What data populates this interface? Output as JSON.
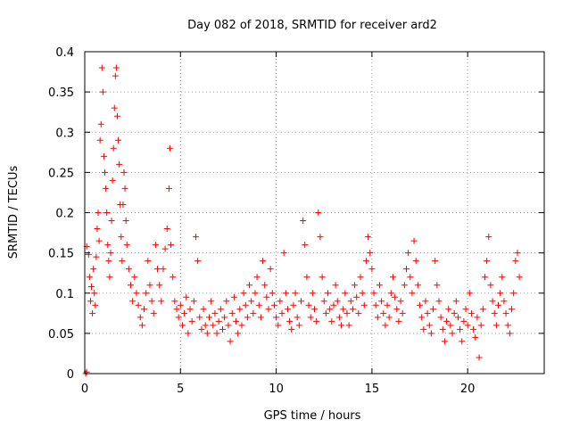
{
  "chart_data": {
    "type": "scatter",
    "title": "Day 082 of 2018, SRMTID for receiver ard2",
    "xlabel": "GPS time / hours",
    "ylabel": "SRMTID / TECUs",
    "xlim": [
      0,
      24
    ],
    "ylim": [
      0,
      0.4
    ],
    "xticks": [
      0,
      5,
      10,
      15,
      20
    ],
    "xtick_labels": [
      "0",
      "5",
      "10",
      "15",
      "20"
    ],
    "yticks": [
      0,
      0.05,
      0.1,
      0.15,
      0.2,
      0.25,
      0.3,
      0.35,
      0.4
    ],
    "ytick_labels": [
      "0",
      "0.05",
      "0.1",
      "0.15",
      "0.2",
      "0.25",
      "0.3",
      "0.35",
      "0.4"
    ],
    "grid": true,
    "marker": "plus",
    "marker_color": "#ff0000",
    "series": [
      {
        "name": "SRMTID",
        "points": [
          [
            0.05,
            0.0
          ],
          [
            0.1,
            0.002
          ],
          [
            0.1,
            0.158
          ],
          [
            0.2,
            0.148
          ],
          [
            0.25,
            0.12
          ],
          [
            0.3,
            0.09
          ],
          [
            0.35,
            0.108
          ],
          [
            0.4,
            0.075
          ],
          [
            0.45,
            0.13
          ],
          [
            0.5,
            0.1
          ],
          [
            0.55,
            0.085
          ],
          [
            0.6,
            0.145
          ],
          [
            0.65,
            0.18
          ],
          [
            0.7,
            0.2
          ],
          [
            0.75,
            0.165
          ],
          [
            0.8,
            0.29
          ],
          [
            0.85,
            0.31
          ],
          [
            0.9,
            0.38
          ],
          [
            0.95,
            0.35
          ],
          [
            1.0,
            0.27
          ],
          [
            1.05,
            0.25
          ],
          [
            1.1,
            0.23
          ],
          [
            1.15,
            0.2
          ],
          [
            1.2,
            0.16
          ],
          [
            1.25,
            0.14
          ],
          [
            1.3,
            0.12
          ],
          [
            1.35,
            0.15
          ],
          [
            1.4,
            0.19
          ],
          [
            1.45,
            0.24
          ],
          [
            1.5,
            0.28
          ],
          [
            1.55,
            0.33
          ],
          [
            1.6,
            0.37
          ],
          [
            1.65,
            0.38
          ],
          [
            1.7,
            0.32
          ],
          [
            1.75,
            0.29
          ],
          [
            1.8,
            0.26
          ],
          [
            1.85,
            0.21
          ],
          [
            1.9,
            0.17
          ],
          [
            1.95,
            0.14
          ],
          [
            2.0,
            0.21
          ],
          [
            2.05,
            0.25
          ],
          [
            2.1,
            0.23
          ],
          [
            2.15,
            0.19
          ],
          [
            2.2,
            0.16
          ],
          [
            2.3,
            0.13
          ],
          [
            2.4,
            0.11
          ],
          [
            2.5,
            0.09
          ],
          [
            2.6,
            0.12
          ],
          [
            2.7,
            0.1
          ],
          [
            2.8,
            0.085
          ],
          [
            2.9,
            0.07
          ],
          [
            3.0,
            0.06
          ],
          [
            3.1,
            0.08
          ],
          [
            3.2,
            0.1
          ],
          [
            3.3,
            0.14
          ],
          [
            3.4,
            0.11
          ],
          [
            3.5,
            0.09
          ],
          [
            3.6,
            0.075
          ],
          [
            3.7,
            0.16
          ],
          [
            3.8,
            0.13
          ],
          [
            3.9,
            0.11
          ],
          [
            4.0,
            0.09
          ],
          [
            4.1,
            0.13
          ],
          [
            4.2,
            0.155
          ],
          [
            4.3,
            0.18
          ],
          [
            4.4,
            0.23
          ],
          [
            4.45,
            0.28
          ],
          [
            4.5,
            0.16
          ],
          [
            4.6,
            0.12
          ],
          [
            4.7,
            0.09
          ],
          [
            4.8,
            0.08
          ],
          [
            4.9,
            0.07
          ],
          [
            5.0,
            0.085
          ],
          [
            5.1,
            0.06
          ],
          [
            5.2,
            0.075
          ],
          [
            5.3,
            0.095
          ],
          [
            5.4,
            0.05
          ],
          [
            5.5,
            0.08
          ],
          [
            5.6,
            0.065
          ],
          [
            5.7,
            0.09
          ],
          [
            5.8,
            0.17
          ],
          [
            5.9,
            0.14
          ],
          [
            6.0,
            0.07
          ],
          [
            6.1,
            0.055
          ],
          [
            6.2,
            0.08
          ],
          [
            6.3,
            0.06
          ],
          [
            6.4,
            0.05
          ],
          [
            6.5,
            0.07
          ],
          [
            6.6,
            0.09
          ],
          [
            6.7,
            0.06
          ],
          [
            6.8,
            0.075
          ],
          [
            6.9,
            0.05
          ],
          [
            7.0,
            0.065
          ],
          [
            7.1,
            0.08
          ],
          [
            7.2,
            0.055
          ],
          [
            7.3,
            0.07
          ],
          [
            7.4,
            0.09
          ],
          [
            7.5,
            0.06
          ],
          [
            7.6,
            0.04
          ],
          [
            7.7,
            0.075
          ],
          [
            7.8,
            0.095
          ],
          [
            7.9,
            0.065
          ],
          [
            8.0,
            0.05
          ],
          [
            8.1,
            0.08
          ],
          [
            8.2,
            0.06
          ],
          [
            8.3,
            0.1
          ],
          [
            8.4,
            0.085
          ],
          [
            8.5,
            0.07
          ],
          [
            8.6,
            0.11
          ],
          [
            8.7,
            0.09
          ],
          [
            8.8,
            0.075
          ],
          [
            8.9,
            0.1
          ],
          [
            9.0,
            0.12
          ],
          [
            9.1,
            0.085
          ],
          [
            9.2,
            0.07
          ],
          [
            9.3,
            0.14
          ],
          [
            9.4,
            0.11
          ],
          [
            9.5,
            0.095
          ],
          [
            9.6,
            0.08
          ],
          [
            9.7,
            0.13
          ],
          [
            9.8,
            0.1
          ],
          [
            9.9,
            0.085
          ],
          [
            10.0,
            0.07
          ],
          [
            10.1,
            0.06
          ],
          [
            10.2,
            0.09
          ],
          [
            10.3,
            0.075
          ],
          [
            10.4,
            0.15
          ],
          [
            10.5,
            0.1
          ],
          [
            10.6,
            0.08
          ],
          [
            10.7,
            0.065
          ],
          [
            10.8,
            0.055
          ],
          [
            10.9,
            0.085
          ],
          [
            11.0,
            0.1
          ],
          [
            11.1,
            0.07
          ],
          [
            11.2,
            0.06
          ],
          [
            11.3,
            0.09
          ],
          [
            11.4,
            0.19
          ],
          [
            11.5,
            0.16
          ],
          [
            11.6,
            0.12
          ],
          [
            11.7,
            0.085
          ],
          [
            11.8,
            0.07
          ],
          [
            11.9,
            0.1
          ],
          [
            12.0,
            0.08
          ],
          [
            12.1,
            0.065
          ],
          [
            12.2,
            0.2
          ],
          [
            12.3,
            0.17
          ],
          [
            12.4,
            0.12
          ],
          [
            12.5,
            0.09
          ],
          [
            12.6,
            0.075
          ],
          [
            12.7,
            0.1
          ],
          [
            12.8,
            0.08
          ],
          [
            12.9,
            0.065
          ],
          [
            13.0,
            0.085
          ],
          [
            13.1,
            0.11
          ],
          [
            13.2,
            0.09
          ],
          [
            13.3,
            0.07
          ],
          [
            13.4,
            0.06
          ],
          [
            13.5,
            0.08
          ],
          [
            13.6,
            0.1
          ],
          [
            13.7,
            0.075
          ],
          [
            13.8,
            0.06
          ],
          [
            13.9,
            0.09
          ],
          [
            14.0,
            0.08
          ],
          [
            14.1,
            0.11
          ],
          [
            14.2,
            0.095
          ],
          [
            14.3,
            0.075
          ],
          [
            14.4,
            0.12
          ],
          [
            14.5,
            0.1
          ],
          [
            14.6,
            0.085
          ],
          [
            14.7,
            0.14
          ],
          [
            14.8,
            0.17
          ],
          [
            14.9,
            0.15
          ],
          [
            15.0,
            0.13
          ],
          [
            15.1,
            0.1
          ],
          [
            15.2,
            0.085
          ],
          [
            15.3,
            0.07
          ],
          [
            15.4,
            0.11
          ],
          [
            15.5,
            0.09
          ],
          [
            15.6,
            0.075
          ],
          [
            15.7,
            0.06
          ],
          [
            15.8,
            0.085
          ],
          [
            15.9,
            0.07
          ],
          [
            16.0,
            0.1
          ],
          [
            16.1,
            0.12
          ],
          [
            16.2,
            0.095
          ],
          [
            16.3,
            0.08
          ],
          [
            16.4,
            0.065
          ],
          [
            16.5,
            0.09
          ],
          [
            16.6,
            0.075
          ],
          [
            16.7,
            0.11
          ],
          [
            16.8,
            0.13
          ],
          [
            16.9,
            0.15
          ],
          [
            17.0,
            0.12
          ],
          [
            17.1,
            0.1
          ],
          [
            17.2,
            0.165
          ],
          [
            17.3,
            0.14
          ],
          [
            17.4,
            0.11
          ],
          [
            17.5,
            0.085
          ],
          [
            17.6,
            0.07
          ],
          [
            17.7,
            0.055
          ],
          [
            17.8,
            0.09
          ],
          [
            17.9,
            0.075
          ],
          [
            18.0,
            0.06
          ],
          [
            18.1,
            0.05
          ],
          [
            18.2,
            0.08
          ],
          [
            18.3,
            0.14
          ],
          [
            18.4,
            0.11
          ],
          [
            18.5,
            0.09
          ],
          [
            18.6,
            0.07
          ],
          [
            18.7,
            0.055
          ],
          [
            18.8,
            0.04
          ],
          [
            18.9,
            0.065
          ],
          [
            19.0,
            0.08
          ],
          [
            19.1,
            0.06
          ],
          [
            19.2,
            0.05
          ],
          [
            19.3,
            0.075
          ],
          [
            19.4,
            0.09
          ],
          [
            19.5,
            0.07
          ],
          [
            19.6,
            0.055
          ],
          [
            19.7,
            0.04
          ],
          [
            19.8,
            0.065
          ],
          [
            19.9,
            0.08
          ],
          [
            20.0,
            0.06
          ],
          [
            20.1,
            0.1
          ],
          [
            20.2,
            0.075
          ],
          [
            20.3,
            0.055
          ],
          [
            20.4,
            0.045
          ],
          [
            20.5,
            0.07
          ],
          [
            20.6,
            0.02
          ],
          [
            20.7,
            0.06
          ],
          [
            20.8,
            0.08
          ],
          [
            20.9,
            0.12
          ],
          [
            21.0,
            0.14
          ],
          [
            21.1,
            0.17
          ],
          [
            21.2,
            0.11
          ],
          [
            21.3,
            0.09
          ],
          [
            21.4,
            0.075
          ],
          [
            21.5,
            0.06
          ],
          [
            21.6,
            0.085
          ],
          [
            21.7,
            0.1
          ],
          [
            21.8,
            0.12
          ],
          [
            21.9,
            0.09
          ],
          [
            22.0,
            0.075
          ],
          [
            22.1,
            0.06
          ],
          [
            22.2,
            0.05
          ],
          [
            22.3,
            0.08
          ],
          [
            22.4,
            0.1
          ],
          [
            22.5,
            0.14
          ],
          [
            22.6,
            0.15
          ],
          [
            22.7,
            0.12
          ]
        ]
      }
    ]
  }
}
